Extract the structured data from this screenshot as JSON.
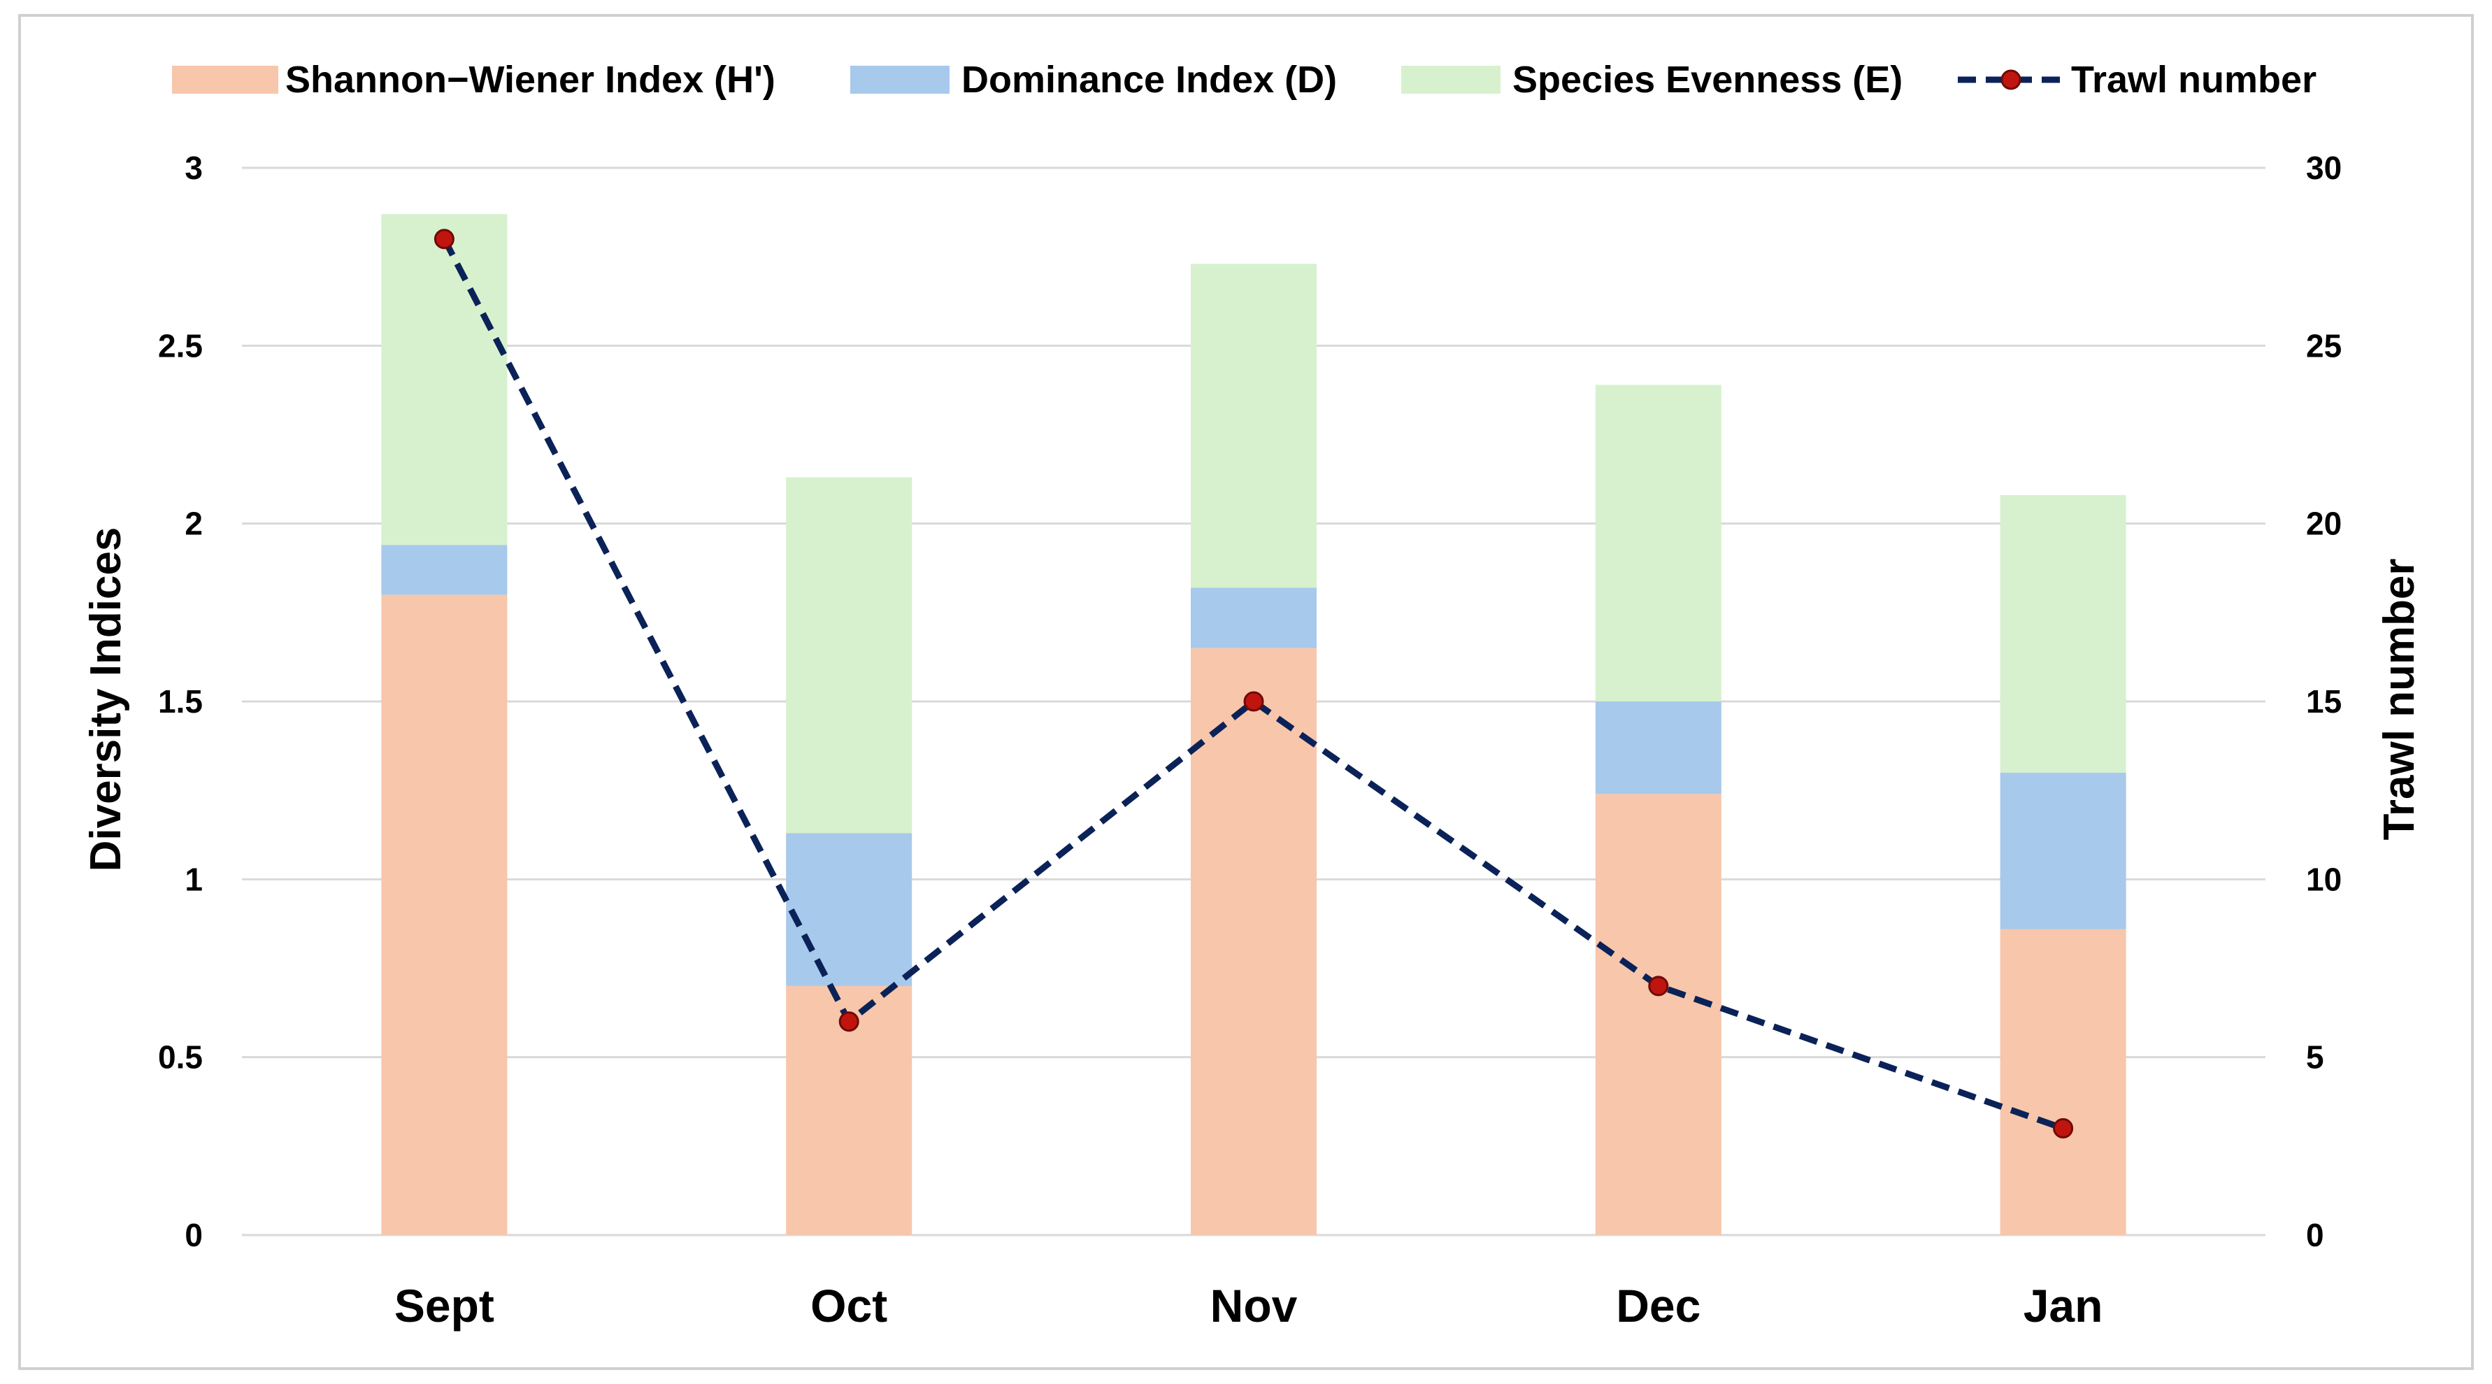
{
  "chart_data": {
    "type": "bar",
    "stacked": true,
    "categories": [
      "Sept",
      "Oct",
      "Nov",
      "Dec",
      "Jan"
    ],
    "series": [
      {
        "name": "Shannon−Wiener Index (H')",
        "type": "bar",
        "axis": "left",
        "color": "#F7C6AB",
        "values": [
          1.8,
          0.7,
          1.65,
          1.24,
          0.86
        ]
      },
      {
        "name": "Dominance Index (D)",
        "type": "bar",
        "axis": "left",
        "color": "#A7C9EB",
        "values": [
          0.14,
          0.43,
          0.17,
          0.26,
          0.44
        ]
      },
      {
        "name": "Species Evenness (E)",
        "type": "bar",
        "axis": "left",
        "color": "#D7F1CE",
        "values": [
          0.93,
          1.0,
          0.91,
          0.89,
          0.78
        ]
      },
      {
        "name": "Trawl number",
        "type": "line",
        "axis": "right",
        "color": "#0B2258",
        "marker_color": "#C0150F",
        "values": [
          28,
          6,
          15,
          7,
          3
        ]
      }
    ],
    "ylabel": "Diversity Indices",
    "y2label": "Trawl number",
    "ylim": [
      0,
      3
    ],
    "y2lim": [
      0,
      30
    ],
    "yticks": [
      "0",
      "0.5",
      "1",
      "1.5",
      "2",
      "2.5",
      "3"
    ],
    "y2ticks": [
      "0",
      "5",
      "10",
      "15",
      "20",
      "25",
      "30"
    ],
    "grid": true,
    "legend": "top"
  }
}
